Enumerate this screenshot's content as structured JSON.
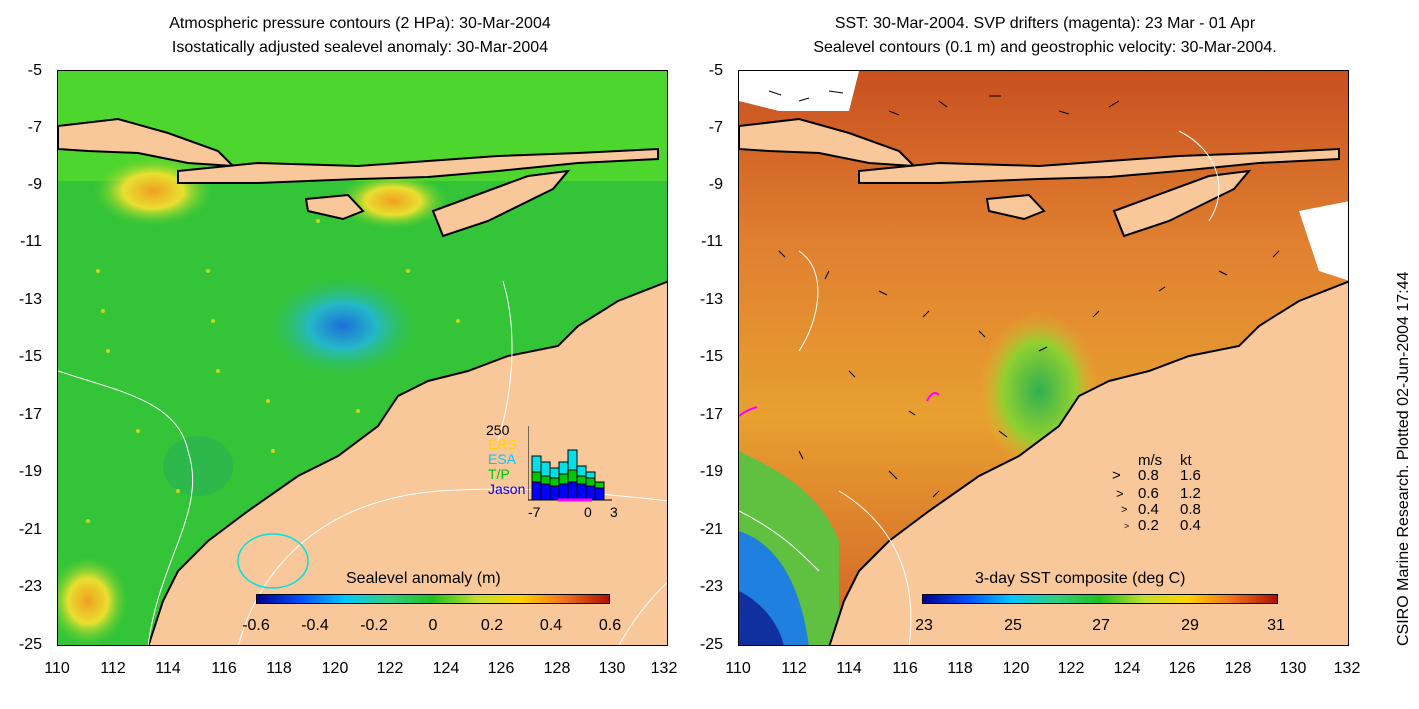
{
  "left": {
    "title_line1": "Atmospheric pressure contours (2 HPa): 30-Mar-2004",
    "title_line2": "Isostatically adjusted sealevel anomaly: 30-Mar-2004",
    "colorbar_title": "Sealevel anomaly (m)",
    "colorbar_ticks": [
      "-0.6",
      "-0.4",
      "-0.2",
      "0",
      "0.2",
      "0.4",
      "0.6"
    ],
    "histogram": {
      "ymax_label": "250",
      "legend": [
        "ERS",
        "ESA",
        "T/P",
        "Jason"
      ],
      "legend_colors": [
        "#ffd400",
        "#00c8ff",
        "#00c800",
        "#0000ff"
      ],
      "x_ticks": [
        "-7",
        "0",
        "3"
      ]
    }
  },
  "right": {
    "title_line1": "SST: 30-Mar-2004. SVP drifters (magenta): 23 Mar - 01 Apr",
    "title_line2": "Sealevel contours (0.1 m) and geostrophic velocity: 30-Mar-2004.",
    "colorbar_title": "3-day SST composite (deg C)",
    "colorbar_ticks": [
      "23",
      "25",
      "27",
      "29",
      "31"
    ],
    "velocity_legend": {
      "header_ms": "m/s",
      "header_kt": "kt",
      "rows": [
        {
          "ms": "0.8",
          "kt": "1.6"
        },
        {
          "ms": "0.6",
          "kt": "1.2"
        },
        {
          "ms": "0.4",
          "kt": "0.8"
        },
        {
          "ms": "0.2",
          "kt": "0.4"
        }
      ]
    }
  },
  "axes": {
    "y_ticks": [
      "-5",
      "-7",
      "-9",
      "-11",
      "-13",
      "-15",
      "-17",
      "-19",
      "-21",
      "-23",
      "-25"
    ],
    "x_ticks": [
      "110",
      "112",
      "114",
      "116",
      "118",
      "120",
      "122",
      "124",
      "126",
      "128",
      "130",
      "132"
    ]
  },
  "credit": "CSIRO Marine Research. Plotted 02-Jun-2004 17:44",
  "colors": {
    "land": "#f9c89a",
    "coast": "#000000",
    "sla_base": "#2ecc2e",
    "sst_base": "#d4632a"
  }
}
